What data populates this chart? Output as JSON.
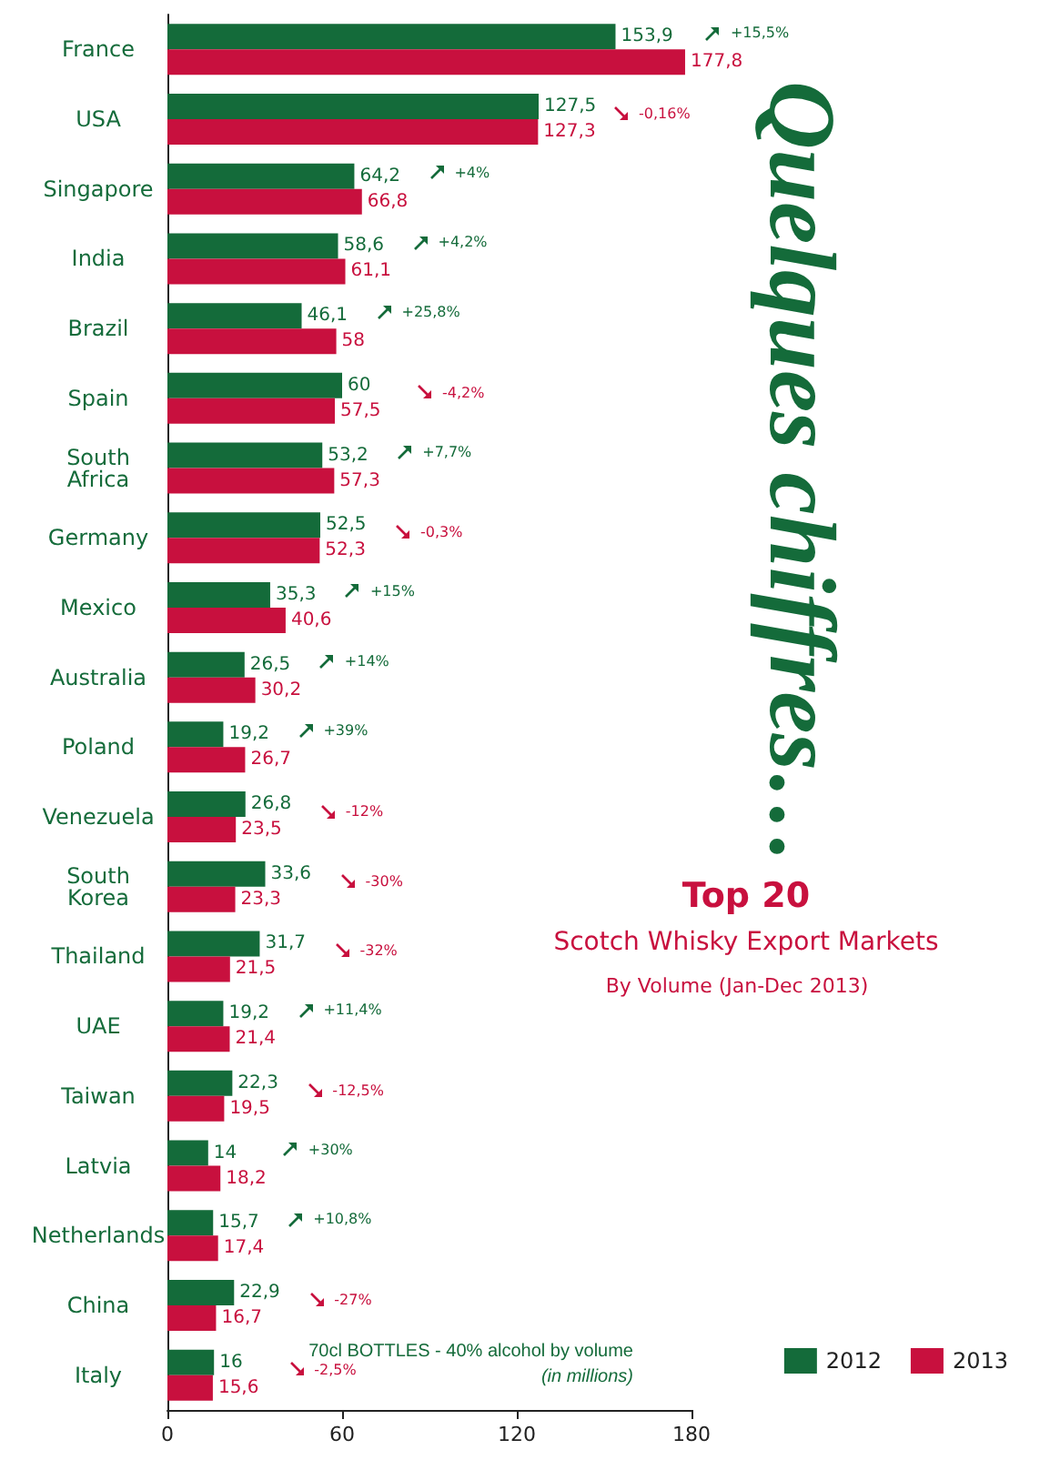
{
  "chart_data": {
    "type": "bar",
    "orientation": "horizontal",
    "title": "Top 20",
    "subtitle": "Scotch Whisky Export Markets",
    "categories": [
      "France",
      "USA",
      "Singapore",
      "India",
      "Brazil",
      "Spain",
      "South Africa",
      "Germany",
      "Mexico",
      "Australia",
      "Poland",
      "Venezuela",
      "South Korea",
      "Thailand",
      "UAE",
      "Taiwan",
      "Latvia",
      "Netherlands",
      "China",
      "Italy"
    ],
    "series": [
      {
        "name": "2012",
        "color": "#146b3a",
        "values": [
          153.9,
          127.5,
          64.2,
          58.6,
          46.1,
          60,
          53.2,
          52.5,
          35.3,
          26.5,
          19.2,
          26.8,
          33.6,
          31.7,
          19.2,
          22.3,
          14,
          15.7,
          22.9,
          16
        ],
        "value_labels": [
          "153,9",
          "127,5",
          "64,2",
          "58,6",
          "46,1",
          "60",
          "53,2",
          "52,5",
          "35,3",
          "26,5",
          "19,2",
          "26,8",
          "33,6",
          "31,7",
          "19,2",
          "22,3",
          "14",
          "15,7",
          "22,9",
          "16"
        ]
      },
      {
        "name": "2013",
        "color": "#c8103e",
        "values": [
          177.8,
          127.3,
          66.8,
          61.1,
          58,
          57.5,
          57.3,
          52.3,
          40.6,
          30.2,
          26.7,
          23.5,
          23.3,
          21.5,
          21.4,
          19.5,
          18.2,
          17.4,
          16.7,
          15.6
        ],
        "value_labels": [
          "177,8",
          "127,3",
          "66,8",
          "61,1",
          "58",
          "57,5",
          "57,3",
          "52,3",
          "40,6",
          "30,2",
          "26,7",
          "23,5",
          "23,3",
          "21,5",
          "21,4",
          "19,5",
          "18,2",
          "17,4",
          "16,7",
          "15,6"
        ]
      }
    ],
    "xlim": [
      0,
      180
    ],
    "xticks": [
      0,
      60,
      120,
      180
    ],
    "grid": false,
    "legend": "bottom right",
    "annotations": [
      "Quelques chiffres…",
      "By Volume (Jan-Dec 2013)",
      "70cl BOTTLES - 40% alcohol by volume",
      "(in millions)",
      "+15,5%",
      "-0,16%",
      "+4%",
      "+4,2%",
      "+25,8%",
      "-4,2%",
      "+7,7%",
      "-0,3%",
      "+15%",
      "+14%",
      "+39%",
      "-12%",
      "-30%",
      "-32%",
      "+11,4%",
      "-12,5%",
      "+30%",
      "+10,8%",
      "-27%",
      "-2,5%"
    ]
  }
}
